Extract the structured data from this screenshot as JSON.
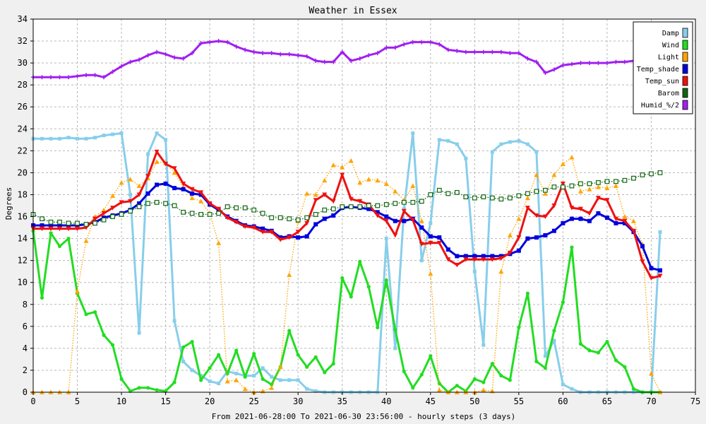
{
  "chart_data": {
    "type": "line",
    "title": "Weather in Essex",
    "xlabel": "From 2021-06-28:00 To 2021-06-30 23:56:00 - hourly steps (3 days)",
    "ylabel": "Degrees",
    "xlim": [
      0,
      75
    ],
    "ylim": [
      0,
      34
    ],
    "xticks": [
      0,
      5,
      10,
      15,
      20,
      25,
      30,
      35,
      40,
      45,
      50,
      55,
      60,
      65,
      70,
      75
    ],
    "yticks": [
      0,
      2,
      4,
      6,
      8,
      10,
      12,
      14,
      16,
      18,
      20,
      22,
      24,
      26,
      28,
      30,
      32,
      34
    ],
    "grid": true,
    "legend_position": "top-right",
    "x": [
      0,
      1,
      2,
      3,
      4,
      5,
      6,
      7,
      8,
      9,
      10,
      11,
      12,
      13,
      14,
      15,
      16,
      17,
      18,
      19,
      20,
      21,
      22,
      23,
      24,
      25,
      26,
      27,
      28,
      29,
      30,
      31,
      32,
      33,
      34,
      35,
      36,
      37,
      38,
      39,
      40,
      41,
      42,
      43,
      44,
      45,
      46,
      47,
      48,
      49,
      50,
      51,
      52,
      53,
      54,
      55,
      56,
      57,
      58,
      59,
      60,
      61,
      62,
      63,
      64,
      65,
      66,
      67,
      68,
      69,
      70,
      71
    ],
    "series": [
      {
        "name": "Damp",
        "color": "#87ceeb",
        "marker": "square",
        "style": "solid",
        "width": 3,
        "values": [
          23.1,
          23.1,
          23.1,
          23.1,
          23.2,
          23.1,
          23.1,
          23.2,
          23.4,
          23.5,
          23.6,
          18.0,
          5.4,
          21.7,
          23.6,
          23.0,
          6.5,
          2.8,
          2.0,
          1.5,
          1.0,
          0.8,
          1.9,
          1.7,
          1.5,
          1.5,
          2.2,
          1.4,
          1.1,
          1.1,
          1.1,
          0.3,
          0.1,
          0.0,
          0.0,
          0.0,
          0.0,
          0.0,
          0.0,
          0.0,
          14.0,
          4.0,
          16.7,
          23.6,
          12.0,
          15.4,
          23.0,
          22.9,
          22.6,
          21.3,
          11.0,
          4.3,
          21.9,
          22.6,
          22.8,
          22.9,
          22.6,
          21.9,
          3.3,
          4.7,
          0.7,
          0.3,
          0.0,
          0.0,
          0.0,
          0.0,
          0.0,
          0.0,
          0.0,
          0.0,
          0.0,
          14.6
        ]
      },
      {
        "name": "Wind",
        "color": "#22dd22",
        "marker": "circle",
        "style": "solid",
        "width": 3,
        "values": [
          14.7,
          8.6,
          14.5,
          13.3,
          14.0,
          9.0,
          7.1,
          7.3,
          5.2,
          4.3,
          1.2,
          0.1,
          0.4,
          0.4,
          0.2,
          0.1,
          0.9,
          4.1,
          4.6,
          1.1,
          2.2,
          3.4,
          1.7,
          3.8,
          1.4,
          3.5,
          1.2,
          0.7,
          2.3,
          5.6,
          3.4,
          2.3,
          3.2,
          1.8,
          2.6,
          10.4,
          8.7,
          11.9,
          9.6,
          5.9,
          10.2,
          5.7,
          1.9,
          0.4,
          1.6,
          3.3,
          0.8,
          0.0,
          0.6,
          0.1,
          1.2,
          0.9,
          2.6,
          1.5,
          1.1,
          5.9,
          9.0,
          2.8,
          2.2,
          5.6,
          8.2,
          13.2,
          4.4,
          3.8,
          3.6,
          4.6,
          2.9,
          2.3,
          0.3,
          0.0,
          0.0,
          0.0
        ]
      },
      {
        "name": "Light",
        "color": "#ffa500",
        "marker": "triangle",
        "style": "dotted",
        "width": 1.3,
        "values": [
          0.0,
          0.0,
          0.0,
          0.0,
          0.0,
          9.2,
          13.8,
          16.0,
          16.6,
          17.9,
          19.1,
          19.4,
          18.8,
          19.5,
          21.0,
          20.9,
          20.0,
          18.7,
          17.7,
          17.4,
          16.3,
          13.6,
          1.0,
          1.1,
          0.3,
          0.0,
          0.1,
          0.4,
          2.3,
          10.7,
          15.6,
          18.1,
          18.0,
          19.3,
          20.7,
          20.5,
          21.1,
          19.1,
          19.4,
          19.3,
          19.0,
          18.3,
          17.5,
          18.8,
          15.6,
          10.8,
          0.2,
          0.0,
          0.0,
          0.0,
          0.0,
          0.2,
          0.1,
          11.0,
          14.3,
          15.8,
          17.7,
          19.8,
          18.1,
          19.8,
          20.8,
          21.4,
          18.3,
          18.5,
          18.7,
          18.6,
          18.8,
          16.0,
          15.6,
          13.5,
          1.7,
          0.0
        ]
      },
      {
        "name": "Temp_shade",
        "color": "#0000dd",
        "marker": "filled-square",
        "style": "solid",
        "width": 3,
        "values": [
          15.2,
          15.2,
          15.2,
          15.2,
          15.2,
          15.2,
          15.3,
          15.5,
          15.9,
          16.1,
          16.3,
          16.6,
          17.2,
          18.1,
          18.9,
          19.0,
          18.6,
          18.5,
          18.1,
          18.0,
          17.1,
          16.6,
          16.0,
          15.6,
          15.2,
          15.1,
          14.9,
          14.7,
          14.1,
          14.2,
          14.1,
          14.2,
          15.3,
          15.8,
          16.1,
          16.8,
          16.9,
          16.8,
          16.7,
          16.4,
          16.0,
          15.6,
          15.6,
          15.8,
          15.0,
          14.2,
          14.1,
          13.0,
          12.4,
          12.4,
          12.4,
          12.4,
          12.4,
          12.4,
          12.6,
          12.9,
          14.0,
          14.1,
          14.3,
          14.7,
          15.4,
          15.8,
          15.8,
          15.6,
          16.3,
          15.9,
          15.4,
          15.4,
          14.6,
          13.3,
          11.3,
          11.1
        ]
      },
      {
        "name": "Temp_sun",
        "color": "#ee1111",
        "marker": "down-triangle",
        "style": "solid",
        "width": 3,
        "values": [
          14.9,
          14.9,
          14.9,
          14.9,
          14.9,
          14.9,
          15.0,
          15.8,
          16.3,
          16.8,
          17.3,
          17.4,
          18.0,
          19.7,
          21.9,
          20.8,
          20.4,
          19.0,
          18.5,
          18.2,
          17.2,
          16.7,
          15.9,
          15.5,
          15.1,
          15.0,
          14.6,
          14.6,
          13.9,
          14.1,
          14.6,
          15.4,
          17.5,
          18.0,
          17.4,
          19.8,
          17.6,
          17.4,
          17.1,
          16.1,
          15.6,
          14.3,
          16.5,
          15.7,
          13.5,
          13.6,
          13.6,
          12.1,
          11.6,
          12.1,
          12.1,
          12.1,
          12.1,
          12.2,
          12.7,
          14.1,
          16.8,
          16.1,
          16.0,
          17.0,
          19.0,
          16.8,
          16.7,
          16.3,
          17.7,
          17.5,
          15.8,
          15.6,
          14.7,
          11.9,
          10.4,
          10.6
        ]
      },
      {
        "name": "Barom",
        "color": "#116611",
        "marker": "hollow-square",
        "style": "dotted",
        "width": 1.3,
        "values": [
          16.2,
          15.8,
          15.5,
          15.5,
          15.4,
          15.4,
          15.3,
          15.4,
          15.7,
          16.0,
          16.2,
          16.5,
          16.9,
          17.2,
          17.3,
          17.2,
          17.0,
          16.4,
          16.3,
          16.2,
          16.2,
          16.3,
          16.9,
          16.8,
          16.8,
          16.6,
          16.3,
          15.9,
          15.9,
          15.8,
          15.7,
          15.9,
          16.2,
          16.6,
          16.7,
          16.9,
          16.9,
          16.9,
          17.0,
          17.0,
          17.1,
          17.2,
          17.3,
          17.3,
          17.4,
          18.0,
          18.4,
          18.1,
          18.2,
          17.8,
          17.7,
          17.8,
          17.7,
          17.6,
          17.7,
          17.9,
          18.1,
          18.3,
          18.4,
          18.7,
          18.7,
          18.8,
          19.0,
          19.0,
          19.1,
          19.2,
          19.2,
          19.3,
          19.5,
          19.8,
          19.9,
          20.0
        ]
      },
      {
        "name": "Humid_%/2",
        "color": "#a020f0",
        "marker": "plus",
        "style": "solid",
        "width": 3,
        "values": [
          28.7,
          28.7,
          28.7,
          28.7,
          28.7,
          28.8,
          28.9,
          28.9,
          28.7,
          29.2,
          29.7,
          30.1,
          30.3,
          30.7,
          31.0,
          30.8,
          30.5,
          30.4,
          30.9,
          31.8,
          31.9,
          32.0,
          31.9,
          31.5,
          31.2,
          31.0,
          30.9,
          30.9,
          30.8,
          30.8,
          30.7,
          30.6,
          30.2,
          30.1,
          30.1,
          31.0,
          30.2,
          30.4,
          30.7,
          30.9,
          31.4,
          31.4,
          31.7,
          31.9,
          31.9,
          31.9,
          31.7,
          31.2,
          31.1,
          31.0,
          31.0,
          31.0,
          31.0,
          31.0,
          30.9,
          30.9,
          30.4,
          30.1,
          29.1,
          29.4,
          29.8,
          29.9,
          30.0,
          30.0,
          30.0,
          30.0,
          30.1,
          30.1,
          30.2,
          30.2,
          30.2,
          30.2
        ]
      }
    ]
  }
}
